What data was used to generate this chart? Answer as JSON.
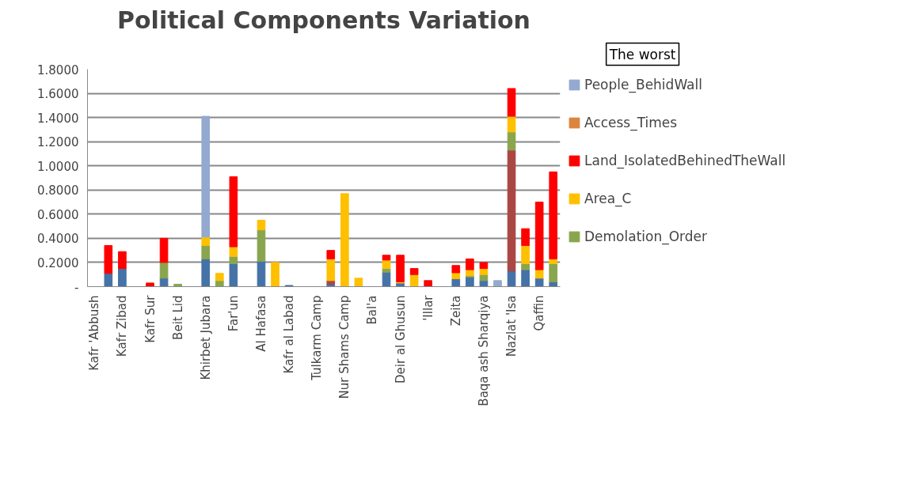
{
  "chart_data": {
    "type": "bar",
    "title": "Political Components Variation",
    "stacked": true,
    "categories": [
      "Kafr 'Abbush",
      null,
      "Kafr Zibad",
      null,
      "Kafr Sur",
      null,
      "Beit Lid",
      null,
      "Khirbet Jubara",
      null,
      "Far'un",
      null,
      "Al Hafasa",
      null,
      "Kafr al Labad",
      null,
      "Tulkarm Camp",
      null,
      "Nur Shams Camp",
      null,
      "Bal'a",
      null,
      "Deir al Ghusun",
      null,
      "'Illar",
      null,
      "Zeita",
      null,
      "Baqa ash Sharqiya",
      null,
      "Nazlat 'Isa",
      null,
      "Qaffin",
      null
    ],
    "series": [
      {
        "color": "#4572a7",
        "values": [
          null,
          0.11,
          0.15,
          null,
          null,
          0.07,
          null,
          null,
          0.23,
          null,
          0.19,
          null,
          0.21,
          null,
          0.01,
          null,
          null,
          0.02,
          null,
          null,
          null,
          0.12,
          0.03,
          null,
          null,
          null,
          0.065,
          0.08,
          0.05,
          null,
          0.13,
          0.14,
          0.07,
          0.04
        ]
      },
      {
        "color": "#aa4643",
        "values": [
          null,
          null,
          null,
          null,
          null,
          null,
          null,
          null,
          null,
          null,
          null,
          null,
          null,
          null,
          null,
          null,
          null,
          0.03,
          null,
          null,
          null,
          null,
          null,
          null,
          null,
          null,
          null,
          null,
          null,
          null,
          1.0,
          null,
          null,
          null
        ]
      },
      {
        "name": "Demolation_Order",
        "color": "#89a54e",
        "values": [
          null,
          null,
          null,
          null,
          null,
          0.13,
          0.02,
          null,
          0.11,
          0.05,
          0.06,
          null,
          0.26,
          null,
          null,
          null,
          null,
          null,
          null,
          null,
          null,
          0.03,
          null,
          null,
          null,
          null,
          null,
          0.01,
          0.05,
          null,
          0.15,
          0.05,
          null,
          0.15
        ]
      },
      {
        "name": "Area_C",
        "color": "#ffc000",
        "values": [
          null,
          null,
          null,
          null,
          null,
          null,
          null,
          null,
          0.07,
          0.06,
          0.08,
          null,
          0.08,
          0.2,
          null,
          null,
          null,
          0.18,
          0.77,
          0.07,
          null,
          0.07,
          0.01,
          0.1,
          null,
          null,
          0.05,
          0.05,
          0.05,
          null,
          0.13,
          0.15,
          0.07,
          0.04
        ]
      },
      {
        "name": "Land_IsolatedBehinedTheWall",
        "color": "#ff0000",
        "values": [
          null,
          0.23,
          0.14,
          null,
          0.03,
          0.2,
          null,
          null,
          null,
          null,
          0.58,
          null,
          null,
          null,
          null,
          null,
          null,
          0.07,
          null,
          null,
          null,
          0.04,
          0.22,
          0.05,
          0.05,
          null,
          0.06,
          0.09,
          0.05,
          null,
          0.23,
          0.14,
          0.56,
          0.72
        ]
      },
      {
        "name": "Access_Times",
        "color": "#db843d",
        "values": [
          null,
          null,
          null,
          null,
          null,
          null,
          null,
          null,
          null,
          null,
          null,
          null,
          null,
          null,
          null,
          null,
          null,
          null,
          null,
          null,
          null,
          null,
          null,
          null,
          null,
          null,
          null,
          null,
          null,
          null,
          null,
          null,
          null,
          null
        ]
      },
      {
        "name": "People_BehidWall",
        "color": "#93a9cf",
        "values": [
          null,
          null,
          null,
          null,
          null,
          null,
          null,
          null,
          1.0,
          null,
          null,
          null,
          null,
          null,
          null,
          null,
          null,
          null,
          null,
          null,
          null,
          null,
          null,
          null,
          null,
          null,
          null,
          null,
          null,
          0.05,
          null,
          null,
          null,
          null
        ]
      }
    ],
    "ylim": [
      0,
      1.8
    ],
    "yticks": [
      {
        "value": 0,
        "label": "-"
      },
      {
        "value": 0.2,
        "label": "0.2000"
      },
      {
        "value": 0.4,
        "label": "0.4000"
      },
      {
        "value": 0.6,
        "label": "0.6000"
      },
      {
        "value": 0.8,
        "label": "0.8000"
      },
      {
        "value": 1.0,
        "label": "1.0000"
      },
      {
        "value": 1.2,
        "label": "1.2000"
      },
      {
        "value": 1.4,
        "label": "1.4000"
      },
      {
        "value": 1.6,
        "label": "1.6000"
      },
      {
        "value": 1.8,
        "label": "1.8000"
      }
    ],
    "grid": "y",
    "legend": "right",
    "annotations": [
      "The worst"
    ]
  }
}
